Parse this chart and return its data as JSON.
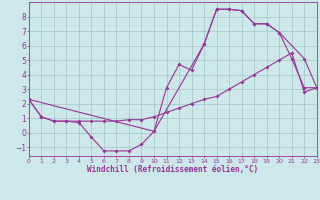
{
  "background_color": "#cce8e8",
  "grid_color": "#aacccc",
  "line_color": "#993399",
  "xlabel": "Windchill (Refroidissement éolien,°C)",
  "xlim": [
    0,
    23
  ],
  "ylim": [
    -1.6,
    9.0
  ],
  "yticks": [
    -1,
    0,
    1,
    2,
    3,
    4,
    5,
    6,
    7,
    8
  ],
  "xticks": [
    0,
    1,
    2,
    3,
    4,
    5,
    6,
    7,
    8,
    9,
    10,
    11,
    12,
    13,
    14,
    15,
    16,
    17,
    18,
    19,
    20,
    21,
    22,
    23
  ],
  "line1_x": [
    0,
    1,
    2,
    3,
    4,
    5,
    6,
    7,
    8,
    9,
    10,
    11,
    12,
    13,
    14,
    15,
    16,
    17,
    18,
    19,
    20,
    21,
    22,
    23
  ],
  "line1_y": [
    2.3,
    1.1,
    0.8,
    0.8,
    0.7,
    -0.3,
    -1.25,
    -1.25,
    -1.25,
    -0.8,
    0.1,
    3.1,
    4.7,
    4.3,
    6.1,
    8.5,
    8.5,
    8.4,
    7.5,
    7.5,
    6.9,
    5.1,
    3.1,
    3.1
  ],
  "line2_x": [
    0,
    1,
    2,
    3,
    4,
    5,
    6,
    7,
    8,
    9,
    10,
    11,
    12,
    13,
    14,
    15,
    16,
    17,
    18,
    19,
    20,
    21,
    22,
    23
  ],
  "line2_y": [
    2.3,
    1.1,
    0.8,
    0.8,
    0.8,
    0.8,
    0.8,
    0.8,
    0.9,
    0.9,
    1.1,
    1.4,
    1.7,
    2.0,
    2.3,
    2.5,
    3.0,
    3.5,
    4.0,
    4.5,
    5.0,
    5.5,
    2.8,
    3.1
  ],
  "line3_x": [
    0,
    10,
    14,
    15,
    16,
    17,
    18,
    19,
    20,
    22,
    23
  ],
  "line3_y": [
    2.3,
    0.1,
    6.1,
    8.5,
    8.5,
    8.4,
    7.5,
    7.5,
    6.9,
    5.1,
    3.1
  ]
}
